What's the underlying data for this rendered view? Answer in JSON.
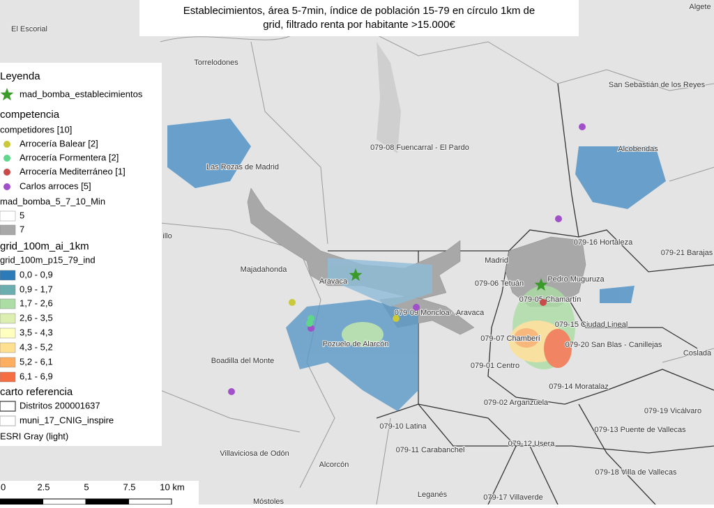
{
  "title": "Establecimientos, área 5-7min, índice de población 15-79 en círculo 1km de grid, filtrado renta por habitante >15.000€",
  "legend": {
    "title": "Leyenda",
    "items": [
      {
        "label": "mad_bomba_establecimientos",
        "symbol": "star",
        "color": "#3a9a2a"
      },
      {
        "label": "competencia",
        "symbol": "header"
      },
      {
        "label": "competidores [10]",
        "symbol": "subheader"
      },
      {
        "label": "Arrocería Balear [2]",
        "symbol": "dot",
        "color": "#c9c93a"
      },
      {
        "label": "Arrocería Formentera [2]",
        "symbol": "dot",
        "color": "#5fd68a"
      },
      {
        "label": "Arrocería Mediterráneo [1]",
        "symbol": "dot",
        "color": "#c84a4a"
      },
      {
        "label": "Carlos arroces [5]",
        "symbol": "dot",
        "color": "#a050c8"
      },
      {
        "label": "mad_bomba_5_7_10_Min",
        "symbol": "subheader"
      },
      {
        "label": "5",
        "symbol": "box",
        "color": "#ffffff"
      },
      {
        "label": "7",
        "symbol": "box",
        "color": "#a8a8a8"
      },
      {
        "label": "grid_100m_ai_1km",
        "symbol": "header"
      },
      {
        "label": "grid_100m_p15_79_ind",
        "symbol": "subheader"
      },
      {
        "label": "0,0 - 0,9",
        "symbol": "box",
        "color": "#2c7bb6"
      },
      {
        "label": "0,9 - 1,7",
        "symbol": "box",
        "color": "#6aaeb0"
      },
      {
        "label": "1,7 - 2,6",
        "symbol": "box",
        "color": "#abdda4"
      },
      {
        "label": "2,6 - 3,5",
        "symbol": "box",
        "color": "#dcefb0"
      },
      {
        "label": "3,5 - 4,3",
        "symbol": "box",
        "color": "#ffffbf"
      },
      {
        "label": "4,3 - 5,2",
        "symbol": "box",
        "color": "#fee090"
      },
      {
        "label": "5,2 - 6,1",
        "symbol": "box",
        "color": "#fdae61"
      },
      {
        "label": "6,1 - 6,9",
        "symbol": "box",
        "color": "#f46d43"
      },
      {
        "label": "carto referencia",
        "symbol": "header"
      },
      {
        "label": "Distritos 200001637",
        "symbol": "outline",
        "color": "#333333"
      },
      {
        "label": "muni_17_CNIG_inspire",
        "symbol": "outline",
        "color": "#bbbbbb"
      },
      {
        "label": "ESRI Gray (light)",
        "symbol": "subheader"
      }
    ]
  },
  "place_labels": [
    "El Escorial",
    "Torrelodones",
    "Algete",
    "San Sebastián de los Reyes",
    "079-08 Fuencarral - El Pardo",
    "Alcobendas",
    "Las Rozas de Madrid",
    "079-16 Hortaleza",
    "079-21 Barajas",
    "illo",
    "Majadahonda",
    "Madrid",
    "Aravaca",
    "079-06 Tetuán",
    "Pedro Muguruza",
    "079-05 Chamartín",
    "079-09 Moncloa - Aravaca",
    "079-15 Ciudad Lineal",
    "079-07 Chamberí",
    "079-20 San Blas - Canillejas",
    "Pozuelo de Alarcón",
    "Coslada",
    "Boadilla del Monte",
    "079-01 Centro",
    "079-14 Moratalaz",
    "079-02 Arganzuela",
    "079-19 Vicálvaro",
    "079-10 Latina",
    "079-13 Puente de Vallecas",
    "079-11 Carabanchel",
    "079-12 Usera",
    "Villaviciosa de Odón",
    "Alcorcón",
    "079-18 Villa de Vallecas",
    "Leganés",
    "079-17 Villaverde",
    "Móstoles"
  ],
  "scale_bar": {
    "labels": [
      "0",
      "2.5",
      "5",
      "7.5",
      "10 km"
    ]
  }
}
